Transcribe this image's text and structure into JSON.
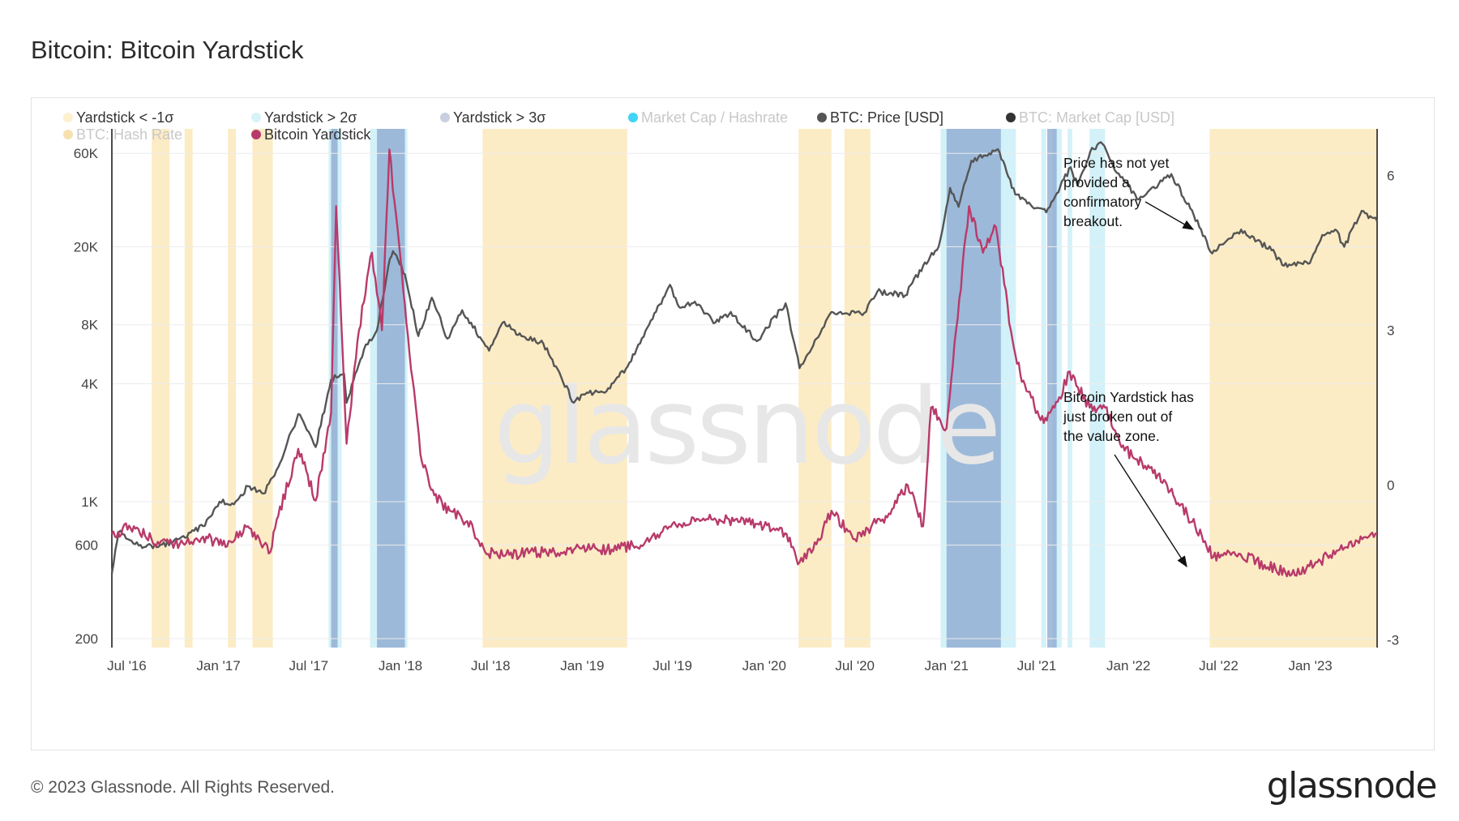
{
  "title": "Bitcoin: Bitcoin Yardstick",
  "footer": {
    "copyright": "© 2023 Glassnode. All Rights Reserved.",
    "logo": "glassnode"
  },
  "watermark": "glassnode",
  "legend": [
    {
      "label": "Yardstick < -1σ",
      "color": "#fdf0cf",
      "active": true
    },
    {
      "label": "Yardstick > 2σ",
      "color": "#d8f3f8",
      "active": true
    },
    {
      "label": "Yardstick > 3σ",
      "color": "#c9cfe0",
      "active": true
    },
    {
      "label": "Market Cap / Hashrate",
      "color": "#41d4f5",
      "active": false
    },
    {
      "label": "BTC: Price [USD]",
      "color": "#555555",
      "active": true
    },
    {
      "label": "BTC: Market Cap [USD]",
      "color": "#333333",
      "active": false
    },
    {
      "label": "BTC: Hash Rate",
      "color": "#f7e1b0",
      "active": false
    },
    {
      "label": "Bitcoin Yardstick",
      "color": "#b83a6a",
      "active": true
    }
  ],
  "annotations": [
    {
      "lines": [
        "Price has not yet",
        "provided a",
        "confirmatory",
        "breakout."
      ]
    },
    {
      "lines": [
        "Bitcoin Yardstick has",
        "just broken out of",
        "the value zone."
      ]
    }
  ],
  "colors": {
    "price": "#555555",
    "yardstick": "#b83a6a",
    "zone_low": "#fbe6b2",
    "zone_high2": "#c8eef6",
    "zone_high3": "#8aa6cf"
  },
  "chart_data": {
    "type": "line",
    "title": "Bitcoin: Bitcoin Yardstick",
    "x_ticks": [
      "Jul '16",
      "Jan '17",
      "Jul '17",
      "Jan '18",
      "Jul '18",
      "Jan '19",
      "Jul '19",
      "Jan '20",
      "Jul '20",
      "Jan '21",
      "Jul '21",
      "Jan '22",
      "Jul '22",
      "Jan '23"
    ],
    "x_range": [
      "2016-06-01",
      "2023-05-15"
    ],
    "y_left": {
      "scale": "log",
      "ticks": [
        "200",
        "600",
        "1K",
        "4K",
        "8K",
        "20K",
        "60K"
      ],
      "tick_values": [
        200,
        600,
        1000,
        4000,
        8000,
        20000,
        60000
      ],
      "range": [
        180,
        80000
      ]
    },
    "y_right": {
      "ticks": [
        "-3",
        "0",
        "3",
        "6"
      ],
      "tick_values": [
        -3,
        0,
        3,
        6
      ],
      "range": [
        -3.15,
        6.9
      ]
    },
    "series": [
      {
        "name": "BTC: Price [USD]",
        "axis": "left",
        "points": [
          [
            "2016-06-01",
            430
          ],
          [
            "2016-06-15",
            700
          ],
          [
            "2016-08-01",
            580
          ],
          [
            "2016-10-01",
            620
          ],
          [
            "2016-12-01",
            750
          ],
          [
            "2017-01-03",
            1000
          ],
          [
            "2017-02-01",
            970
          ],
          [
            "2017-03-01",
            1200
          ],
          [
            "2017-04-01",
            1100
          ],
          [
            "2017-05-01",
            1500
          ],
          [
            "2017-06-10",
            2800
          ],
          [
            "2017-07-15",
            1900
          ],
          [
            "2017-08-15",
            4200
          ],
          [
            "2017-09-10",
            4500
          ],
          [
            "2017-09-15",
            3200
          ],
          [
            "2017-10-20",
            6000
          ],
          [
            "2017-11-15",
            7500
          ],
          [
            "2017-12-08",
            16000
          ],
          [
            "2017-12-17",
            19000
          ],
          [
            "2018-01-10",
            14500
          ],
          [
            "2018-02-06",
            7000
          ],
          [
            "2018-03-05",
            11000
          ],
          [
            "2018-04-05",
            6800
          ],
          [
            "2018-05-05",
            9500
          ],
          [
            "2018-06-28",
            5900
          ],
          [
            "2018-07-25",
            8200
          ],
          [
            "2018-09-01",
            7000
          ],
          [
            "2018-10-15",
            6400
          ],
          [
            "2018-11-20",
            4300
          ],
          [
            "2018-12-15",
            3200
          ],
          [
            "2019-01-10",
            3600
          ],
          [
            "2019-02-15",
            3600
          ],
          [
            "2019-04-02",
            4900
          ],
          [
            "2019-05-15",
            8000
          ],
          [
            "2019-06-26",
            12800
          ],
          [
            "2019-07-15",
            9800
          ],
          [
            "2019-08-15",
            10500
          ],
          [
            "2019-09-25",
            8200
          ],
          [
            "2019-10-26",
            9300
          ],
          [
            "2019-12-17",
            6600
          ],
          [
            "2020-02-13",
            10300
          ],
          [
            "2020-03-12",
            4800
          ],
          [
            "2020-04-15",
            6800
          ],
          [
            "2020-05-15",
            9300
          ],
          [
            "2020-07-20",
            9200
          ],
          [
            "2020-08-15",
            11800
          ],
          [
            "2020-10-10",
            11300
          ],
          [
            "2020-11-15",
            16000
          ],
          [
            "2020-12-16",
            20000
          ],
          [
            "2021-01-08",
            40000
          ],
          [
            "2021-01-25",
            32000
          ],
          [
            "2021-02-20",
            55000
          ],
          [
            "2021-04-14",
            63000
          ],
          [
            "2021-05-19",
            37000
          ],
          [
            "2021-06-22",
            32000
          ],
          [
            "2021-07-20",
            30000
          ],
          [
            "2021-09-07",
            51000
          ],
          [
            "2021-09-21",
            41000
          ],
          [
            "2021-10-20",
            64000
          ],
          [
            "2021-11-10",
            67000
          ],
          [
            "2021-12-05",
            49000
          ],
          [
            "2022-01-22",
            35000
          ],
          [
            "2022-03-28",
            47000
          ],
          [
            "2022-05-12",
            29000
          ],
          [
            "2022-06-18",
            18500
          ],
          [
            "2022-08-15",
            24500
          ],
          [
            "2022-10-15",
            19200
          ],
          [
            "2022-11-09",
            16000
          ],
          [
            "2022-12-31",
            16500
          ],
          [
            "2023-01-25",
            23000
          ],
          [
            "2023-02-20",
            24500
          ],
          [
            "2023-03-10",
            20000
          ],
          [
            "2023-04-14",
            30500
          ],
          [
            "2023-05-15",
            27000
          ]
        ]
      },
      {
        "name": "Bitcoin Yardstick",
        "axis": "right",
        "points": [
          [
            "2016-06-01",
            -0.95
          ],
          [
            "2016-07-15",
            -0.8
          ],
          [
            "2016-09-01",
            -1.1
          ],
          [
            "2016-10-15",
            -1.15
          ],
          [
            "2016-12-01",
            -1.0
          ],
          [
            "2017-01-15",
            -1.2
          ],
          [
            "2017-03-01",
            -0.8
          ],
          [
            "2017-04-15",
            -1.3
          ],
          [
            "2017-05-01",
            -0.6
          ],
          [
            "2017-06-10",
            0.7
          ],
          [
            "2017-07-15",
            -0.3
          ],
          [
            "2017-08-15",
            1.4
          ],
          [
            "2017-08-25",
            5.4
          ],
          [
            "2017-09-15",
            0.8
          ],
          [
            "2017-10-10",
            3.0
          ],
          [
            "2017-11-05",
            4.5
          ],
          [
            "2017-11-25",
            3.0
          ],
          [
            "2017-12-10",
            6.5
          ],
          [
            "2017-12-20",
            5.5
          ],
          [
            "2018-01-10",
            3.5
          ],
          [
            "2018-02-10",
            0.6
          ],
          [
            "2018-03-10",
            -0.2
          ],
          [
            "2018-04-10",
            -0.5
          ],
          [
            "2018-05-15",
            -0.7
          ],
          [
            "2018-06-20",
            -1.3
          ],
          [
            "2018-08-01",
            -1.35
          ],
          [
            "2018-10-15",
            -1.3
          ],
          [
            "2018-12-15",
            -1.25
          ],
          [
            "2019-03-01",
            -1.25
          ],
          [
            "2019-05-15",
            -1.1
          ],
          [
            "2019-07-01",
            -0.75
          ],
          [
            "2019-09-01",
            -0.65
          ],
          [
            "2019-11-01",
            -0.7
          ],
          [
            "2019-12-15",
            -0.75
          ],
          [
            "2020-02-15",
            -0.95
          ],
          [
            "2020-03-12",
            -1.5
          ],
          [
            "2020-04-15",
            -1.15
          ],
          [
            "2020-05-15",
            -0.5
          ],
          [
            "2020-07-01",
            -1.05
          ],
          [
            "2020-09-01",
            -0.6
          ],
          [
            "2020-10-15",
            0.0
          ],
          [
            "2020-11-15",
            -0.8
          ],
          [
            "2020-12-01",
            1.5
          ],
          [
            "2021-01-01",
            1.1
          ],
          [
            "2021-01-20",
            3.0
          ],
          [
            "2021-02-15",
            5.4
          ],
          [
            "2021-03-15",
            4.5
          ],
          [
            "2021-04-10",
            5.0
          ],
          [
            "2021-05-10",
            3.0
          ],
          [
            "2021-06-01",
            2.0
          ],
          [
            "2021-07-15",
            1.2
          ],
          [
            "2021-08-15",
            1.7
          ],
          [
            "2021-09-05",
            2.2
          ],
          [
            "2021-10-15",
            1.5
          ],
          [
            "2021-11-15",
            1.5
          ],
          [
            "2021-12-15",
            0.8
          ],
          [
            "2022-01-15",
            0.5
          ],
          [
            "2022-03-01",
            0.2
          ],
          [
            "2022-04-01",
            -0.2
          ],
          [
            "2022-05-15",
            -0.8
          ],
          [
            "2022-06-20",
            -1.4
          ],
          [
            "2022-08-01",
            -1.3
          ],
          [
            "2022-10-01",
            -1.55
          ],
          [
            "2022-12-01",
            -1.75
          ],
          [
            "2023-01-15",
            -1.5
          ],
          [
            "2023-03-01",
            -1.25
          ],
          [
            "2023-04-15",
            -1.05
          ],
          [
            "2023-05-15",
            -0.95
          ]
        ]
      }
    ],
    "zones": {
      "low": [
        [
          "2016-08-20",
          "2016-09-25"
        ],
        [
          "2016-10-25",
          "2016-11-10"
        ],
        [
          "2017-01-20",
          "2017-02-05"
        ],
        [
          "2017-03-10",
          "2017-04-20"
        ],
        [
          "2018-06-15",
          "2019-04-01"
        ],
        [
          "2020-03-10",
          "2020-05-15"
        ],
        [
          "2020-06-10",
          "2020-08-01"
        ],
        [
          "2022-06-13",
          "2023-05-15"
        ]
      ],
      "high2": [
        [
          "2017-08-10",
          "2017-09-05"
        ],
        [
          "2017-11-01",
          "2018-01-15"
        ],
        [
          "2020-12-20",
          "2021-05-20"
        ],
        [
          "2021-07-10",
          "2021-07-20"
        ],
        [
          "2021-08-01",
          "2021-08-20"
        ],
        [
          "2021-09-01",
          "2021-09-10"
        ],
        [
          "2021-10-15",
          "2021-11-15"
        ]
      ],
      "high3": [
        [
          "2017-08-15",
          "2017-08-28"
        ],
        [
          "2017-11-15",
          "2018-01-10"
        ],
        [
          "2021-01-01",
          "2021-04-20"
        ],
        [
          "2021-07-22",
          "2021-08-10"
        ]
      ]
    }
  }
}
